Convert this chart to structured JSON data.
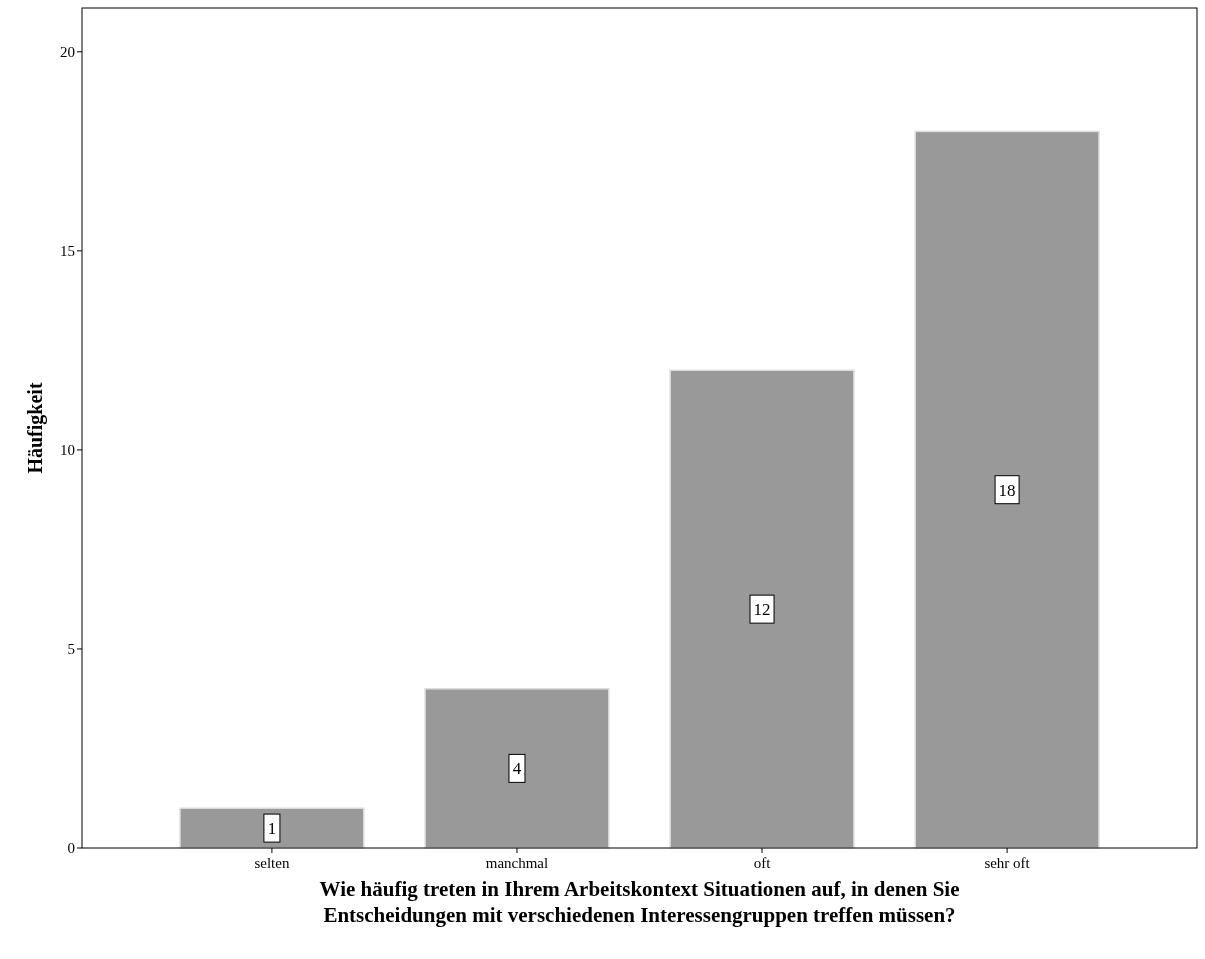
{
  "chart_data": {
    "type": "bar",
    "xlabel": "Wie häufig treten in Ihrem Arbeitskontext Situationen auf, in denen Sie Entscheidungen mit verschiedenen Interessengruppen treffen müssen?",
    "ylabel": "Häufigkeit",
    "categories": [
      "selten",
      "manchmal",
      "oft",
      "sehr oft"
    ],
    "values": [
      1,
      4,
      12,
      18
    ],
    "color": "#999999",
    "ylim": [
      0,
      21.1
    ],
    "yticks": [
      0,
      5,
      10,
      15,
      20
    ],
    "data_labels": true
  }
}
